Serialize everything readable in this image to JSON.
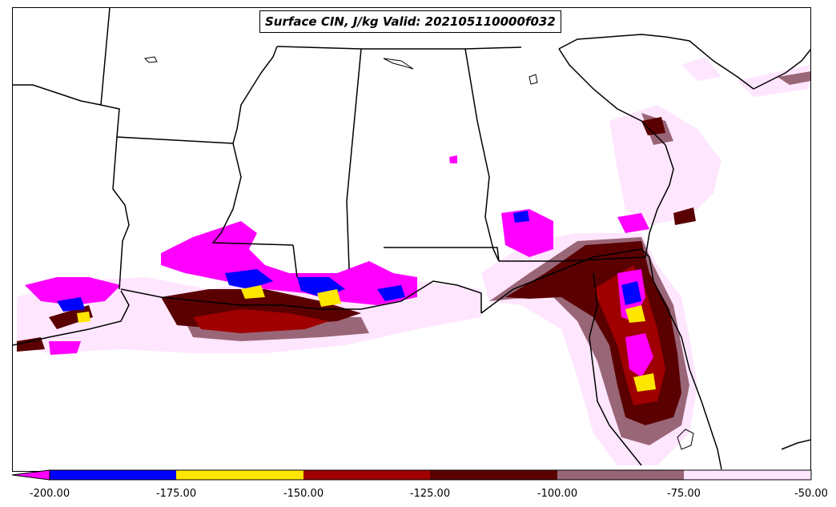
{
  "title": "Surface CIN, J/kg Valid: 202105110000f032",
  "colorbar": {
    "ticks": [
      "-200.00",
      "-175.00",
      "-150.00",
      "-125.00",
      "-100.00",
      "-75.00",
      "-50.00"
    ],
    "colors": {
      "below_-200": "#ff00ff",
      "-200_to_-175": "#0000ff",
      "-175_to_-150": "#ffe600",
      "-150_to_-125": "#a00000",
      "-125_to_-100": "#5a0000",
      "-100_to_-75": "#996677",
      "-75_to_-50": "#ffe6ff"
    }
  }
}
